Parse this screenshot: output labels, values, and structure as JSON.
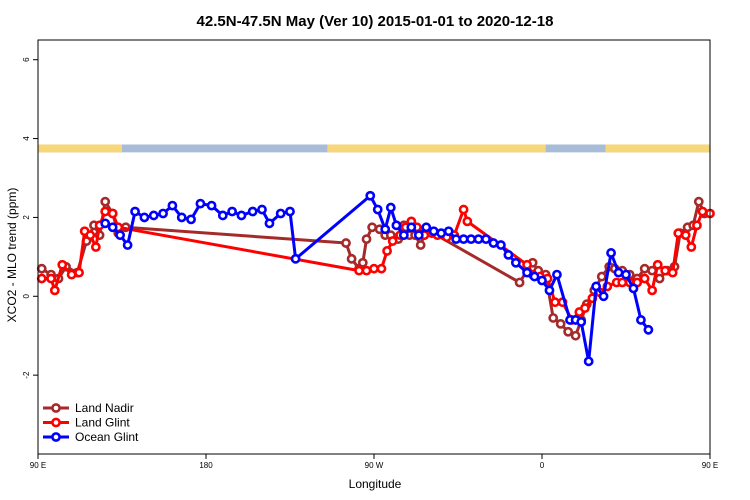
{
  "chart_data": {
    "type": "line",
    "title": "42.5N-47.5N May (Ver 10)   2015-01-01 to 2020-12-18",
    "xlabel": "Longitude",
    "ylabel": "XCO2 - MLO trend (ppm)",
    "xlim": [
      90,
      450
    ],
    "ylim": [
      -4,
      6.5
    ],
    "x_ticks": [
      {
        "value": 90,
        "label": "90 E"
      },
      {
        "value": 180,
        "label": "180"
      },
      {
        "value": 270,
        "label": "90 W"
      },
      {
        "value": 360,
        "label": "0"
      },
      {
        "value": 450,
        "label": "90 E"
      },
      {
        "value": 540,
        "label": "180"
      }
    ],
    "y_ticks": [
      {
        "value": -2,
        "label": "-2"
      },
      {
        "value": 0,
        "label": "0"
      },
      {
        "value": 2,
        "label": "2"
      },
      {
        "value": 4,
        "label": "4"
      },
      {
        "value": 6,
        "label": "6"
      }
    ],
    "legend_position": "bottom-left",
    "land_ocean_strip": {
      "y_range": [
        3.65,
        3.85
      ],
      "land_color": "#f8d77a",
      "ocean_color": "#a8bcd8",
      "land_segments": [
        [
          90,
          135
        ],
        [
          245,
          362
        ],
        [
          394,
          493
        ],
        [
          525,
          540
        ]
      ]
    },
    "series": [
      {
        "name": "Land Nadir",
        "color": "#a52a2a",
        "points": [
          [
            92,
            0.7
          ],
          [
            97,
            0.55
          ],
          [
            101,
            0.45
          ],
          [
            105,
            0.75
          ],
          [
            111,
            0.6
          ],
          [
            116,
            1.4
          ],
          [
            120,
            1.8
          ],
          [
            123,
            1.55
          ],
          [
            126,
            2.4
          ],
          [
            130,
            2.1
          ],
          [
            133,
            1.6
          ],
          [
            137,
            1.75
          ],
          [
            255,
            1.35
          ],
          [
            258,
            0.95
          ],
          [
            262,
            0.7
          ],
          [
            264,
            0.85
          ],
          [
            266,
            1.45
          ],
          [
            269,
            1.75
          ],
          [
            273,
            1.7
          ],
          [
            276,
            1.55
          ],
          [
            279,
            1.55
          ],
          [
            283,
            1.45
          ],
          [
            286,
            1.8
          ],
          [
            289,
            1.55
          ],
          [
            292,
            1.55
          ],
          [
            295,
            1.3
          ],
          [
            298,
            1.7
          ],
          [
            348,
            0.35
          ],
          [
            352,
            0.65
          ],
          [
            355,
            0.85
          ],
          [
            358,
            0.65
          ],
          [
            362,
            0.55
          ],
          [
            366,
            -0.55
          ],
          [
            370,
            -0.7
          ],
          [
            374,
            -0.9
          ],
          [
            378,
            -1.0
          ],
          [
            381,
            -0.6
          ],
          [
            384,
            -0.2
          ],
          [
            388,
            0.15
          ],
          [
            392,
            0.5
          ],
          [
            396,
            0.75
          ],
          [
            399,
            0.7
          ],
          [
            403,
            0.65
          ],
          [
            407,
            0.55
          ],
          [
            411,
            0.45
          ],
          [
            415,
            0.7
          ],
          [
            419,
            0.65
          ],
          [
            423,
            0.45
          ],
          [
            427,
            0.65
          ],
          [
            431,
            0.75
          ],
          [
            434,
            1.6
          ],
          [
            438,
            1.75
          ],
          [
            441,
            1.8
          ],
          [
            444,
            2.4
          ],
          [
            447,
            2.1
          ],
          [
            451,
            1.75
          ]
        ]
      },
      {
        "name": "Land Glint",
        "color": "#ff0000",
        "points": [
          [
            92,
            0.45
          ],
          [
            97,
            0.45
          ],
          [
            99,
            0.15
          ],
          [
            103,
            0.8
          ],
          [
            108,
            0.55
          ],
          [
            112,
            0.6
          ],
          [
            115,
            1.65
          ],
          [
            118,
            1.55
          ],
          [
            121,
            1.25
          ],
          [
            123,
            1.8
          ],
          [
            126,
            2.15
          ],
          [
            130,
            2.1
          ],
          [
            133,
            1.75
          ],
          [
            262,
            0.65
          ],
          [
            266,
            0.65
          ],
          [
            270,
            0.7
          ],
          [
            274,
            0.7
          ],
          [
            277,
            1.15
          ],
          [
            280,
            1.4
          ],
          [
            284,
            1.55
          ],
          [
            287,
            1.75
          ],
          [
            290,
            1.9
          ],
          [
            293,
            1.75
          ],
          [
            297,
            1.55
          ],
          [
            301,
            1.6
          ],
          [
            304,
            1.55
          ],
          [
            309,
            1.5
          ],
          [
            313,
            1.55
          ],
          [
            318,
            2.2
          ],
          [
            320,
            1.9
          ],
          [
            352,
            0.8
          ],
          [
            355,
            0.55
          ],
          [
            359,
            0.5
          ],
          [
            363,
            0.45
          ],
          [
            367,
            -0.15
          ],
          [
            371,
            -0.15
          ],
          [
            376,
            -0.6
          ],
          [
            380,
            -0.4
          ],
          [
            383,
            -0.3
          ],
          [
            387,
            -0.05
          ],
          [
            391,
            0.1
          ],
          [
            395,
            0.25
          ],
          [
            400,
            0.35
          ],
          [
            403,
            0.35
          ],
          [
            407,
            0.35
          ],
          [
            411,
            0.35
          ],
          [
            415,
            0.45
          ],
          [
            419,
            0.15
          ],
          [
            422,
            0.8
          ],
          [
            426,
            0.65
          ],
          [
            430,
            0.6
          ],
          [
            433,
            1.6
          ],
          [
            437,
            1.55
          ],
          [
            440,
            1.25
          ],
          [
            443,
            1.8
          ],
          [
            446,
            2.15
          ],
          [
            450,
            2.1
          ]
        ]
      },
      {
        "name": "Ocean Glint",
        "color": "#0000ff",
        "points": [
          [
            126,
            1.85
          ],
          [
            130,
            1.75
          ],
          [
            134,
            1.55
          ],
          [
            138,
            1.3
          ],
          [
            142,
            2.15
          ],
          [
            147,
            2.0
          ],
          [
            152,
            2.05
          ],
          [
            157,
            2.1
          ],
          [
            162,
            2.3
          ],
          [
            167,
            2.0
          ],
          [
            172,
            1.95
          ],
          [
            177,
            2.35
          ],
          [
            183,
            2.3
          ],
          [
            189,
            2.05
          ],
          [
            194,
            2.15
          ],
          [
            199,
            2.05
          ],
          [
            205,
            2.15
          ],
          [
            210,
            2.2
          ],
          [
            214,
            1.85
          ],
          [
            220,
            2.1
          ],
          [
            225,
            2.15
          ],
          [
            228,
            0.95
          ],
          [
            268,
            2.55
          ],
          [
            272,
            2.2
          ],
          [
            276,
            1.7
          ],
          [
            279,
            2.25
          ],
          [
            282,
            1.8
          ],
          [
            286,
            1.55
          ],
          [
            290,
            1.75
          ],
          [
            294,
            1.55
          ],
          [
            298,
            1.75
          ],
          [
            302,
            1.65
          ],
          [
            306,
            1.6
          ],
          [
            310,
            1.65
          ],
          [
            314,
            1.45
          ],
          [
            318,
            1.45
          ],
          [
            322,
            1.45
          ],
          [
            326,
            1.45
          ],
          [
            330,
            1.45
          ],
          [
            334,
            1.35
          ],
          [
            338,
            1.3
          ],
          [
            342,
            1.05
          ],
          [
            346,
            0.85
          ],
          [
            352,
            0.6
          ],
          [
            356,
            0.5
          ],
          [
            360,
            0.4
          ],
          [
            364,
            0.15
          ],
          [
            368,
            0.55
          ],
          [
            375,
            -0.6
          ],
          [
            378,
            -0.6
          ],
          [
            381,
            -0.65
          ],
          [
            385,
            -1.65
          ],
          [
            389,
            0.25
          ],
          [
            393,
            0.0
          ],
          [
            397,
            1.1
          ],
          [
            401,
            0.6
          ],
          [
            405,
            0.55
          ],
          [
            409,
            0.2
          ],
          [
            413,
            -0.6
          ],
          [
            417,
            -0.85
          ]
        ]
      }
    ]
  }
}
